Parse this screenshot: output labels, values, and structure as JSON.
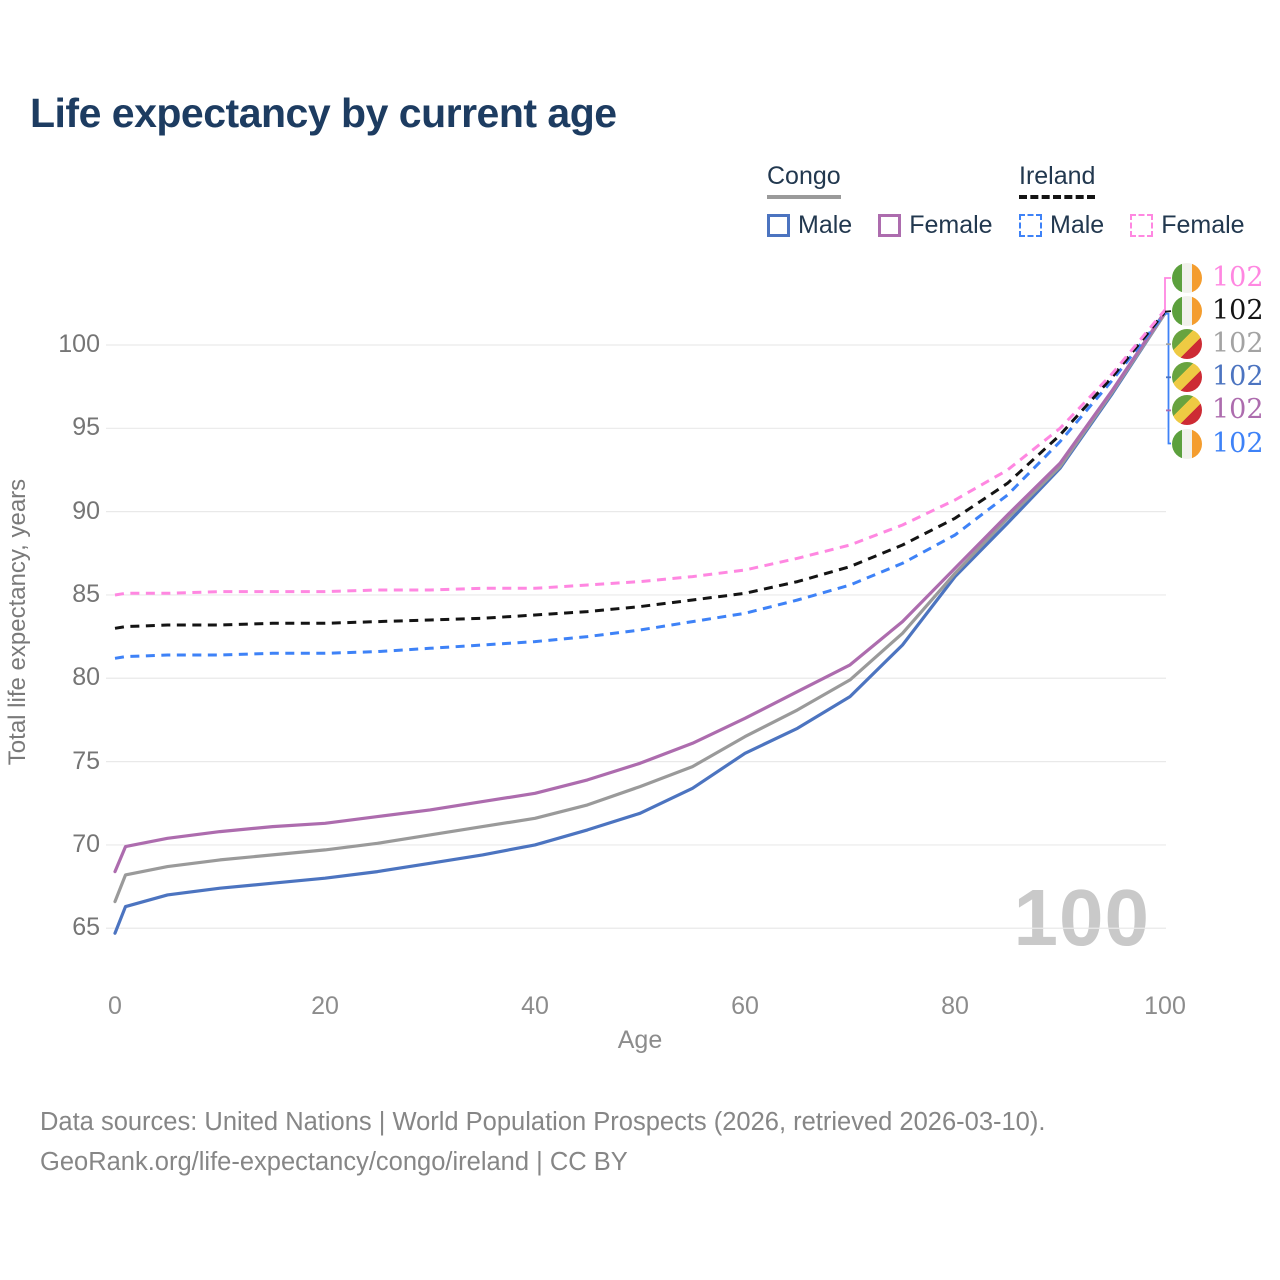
{
  "title": "Life expectancy by current age",
  "legend": {
    "groups": [
      {
        "name": "Congo",
        "line_style": "solid",
        "underline_color": "#9a9a9a",
        "items": [
          {
            "label": "Male",
            "color": "#4c74c0"
          },
          {
            "label": "Female",
            "color": "#ad6cae"
          }
        ]
      },
      {
        "name": "Ireland",
        "line_style": "dashed",
        "underline_color": "#141414",
        "items": [
          {
            "label": "Male",
            "color": "#3e82f7"
          },
          {
            "label": "Female",
            "color": "#ff87e1"
          }
        ]
      }
    ]
  },
  "chart_data": {
    "type": "line",
    "title": "Life expectancy by current age",
    "xlabel": "Age",
    "ylabel": "Total life expectancy, years",
    "xlim": [
      0,
      100
    ],
    "ylim": [
      63,
      104
    ],
    "x_ticks": [
      0,
      20,
      40,
      60,
      80,
      100
    ],
    "y_ticks": [
      65,
      70,
      75,
      80,
      85,
      90,
      95,
      100
    ],
    "grid": "horizontal",
    "legend_position": "top-right",
    "age_counter_watermark": "100",
    "x": [
      0,
      1,
      5,
      10,
      15,
      20,
      25,
      30,
      35,
      40,
      45,
      50,
      55,
      60,
      65,
      70,
      75,
      80,
      85,
      90,
      95,
      100
    ],
    "series": [
      {
        "name": "Congo Male",
        "color": "#4c74c0",
        "dashed": false,
        "values": [
          64.7,
          66.3,
          67.0,
          67.4,
          67.7,
          68.0,
          68.4,
          68.9,
          69.4,
          70.0,
          70.9,
          71.9,
          73.4,
          75.5,
          77.0,
          78.9,
          82.0,
          86.1,
          89.3,
          92.6,
          97.1,
          101.9
        ]
      },
      {
        "name": "Congo (both sexes)",
        "color": "#9a9a9a",
        "dashed": false,
        "values": [
          66.6,
          68.2,
          68.7,
          69.1,
          69.4,
          69.7,
          70.1,
          70.6,
          71.1,
          71.6,
          72.4,
          73.5,
          74.7,
          76.5,
          78.1,
          79.9,
          82.7,
          86.3,
          89.6,
          92.7,
          97.2,
          101.9
        ]
      },
      {
        "name": "Congo Female",
        "color": "#ad6cae",
        "dashed": false,
        "values": [
          68.4,
          69.9,
          70.4,
          70.8,
          71.1,
          71.3,
          71.7,
          72.1,
          72.6,
          73.1,
          73.9,
          74.9,
          76.1,
          77.6,
          79.2,
          80.8,
          83.4,
          86.6,
          89.8,
          92.9,
          97.3,
          102.0
        ]
      },
      {
        "name": "Ireland Male",
        "color": "#3e82f7",
        "dashed": true,
        "values": [
          81.2,
          81.3,
          81.4,
          81.4,
          81.5,
          81.5,
          81.6,
          81.8,
          82.0,
          82.2,
          82.5,
          82.9,
          83.4,
          83.9,
          84.7,
          85.6,
          86.9,
          88.6,
          91.0,
          94.2,
          97.9,
          101.9
        ]
      },
      {
        "name": "Ireland (both sexes)",
        "color": "#141414",
        "dashed": true,
        "values": [
          83.0,
          83.1,
          83.2,
          83.2,
          83.3,
          83.3,
          83.4,
          83.5,
          83.6,
          83.8,
          84.0,
          84.3,
          84.7,
          85.1,
          85.8,
          86.7,
          88.0,
          89.6,
          91.7,
          94.6,
          98.1,
          102.0
        ]
      },
      {
        "name": "Ireland Female",
        "color": "#ff87e1",
        "dashed": true,
        "values": [
          85.0,
          85.1,
          85.1,
          85.2,
          85.2,
          85.2,
          85.3,
          85.3,
          85.4,
          85.4,
          85.6,
          85.8,
          86.1,
          86.5,
          87.2,
          88.0,
          89.2,
          90.7,
          92.5,
          95.0,
          98.3,
          102.1
        ]
      }
    ],
    "end_labels": [
      {
        "value": "102",
        "series": "Ireland Female",
        "color": "#ff87e1",
        "flag": "ireland"
      },
      {
        "value": "102",
        "series": "Ireland (both sexes)",
        "color": "#141414",
        "flag": "ireland"
      },
      {
        "value": "102",
        "series": "Congo (both sexes)",
        "color": "#a3a3a3",
        "flag": "congo"
      },
      {
        "value": "102",
        "series": "Congo Male",
        "color": "#4c74c0",
        "flag": "congo"
      },
      {
        "value": "102",
        "series": "Congo Female",
        "color": "#ad6cae",
        "flag": "congo"
      },
      {
        "value": "102",
        "series": "Ireland Male",
        "color": "#3e82f7",
        "flag": "ireland"
      }
    ]
  },
  "footer": {
    "line1": "Data sources: United Nations | World Population Prospects (2026, retrieved 2026-03-10).",
    "line2": "GeoRank.org/life-expectancy/congo/ireland | CC BY"
  }
}
